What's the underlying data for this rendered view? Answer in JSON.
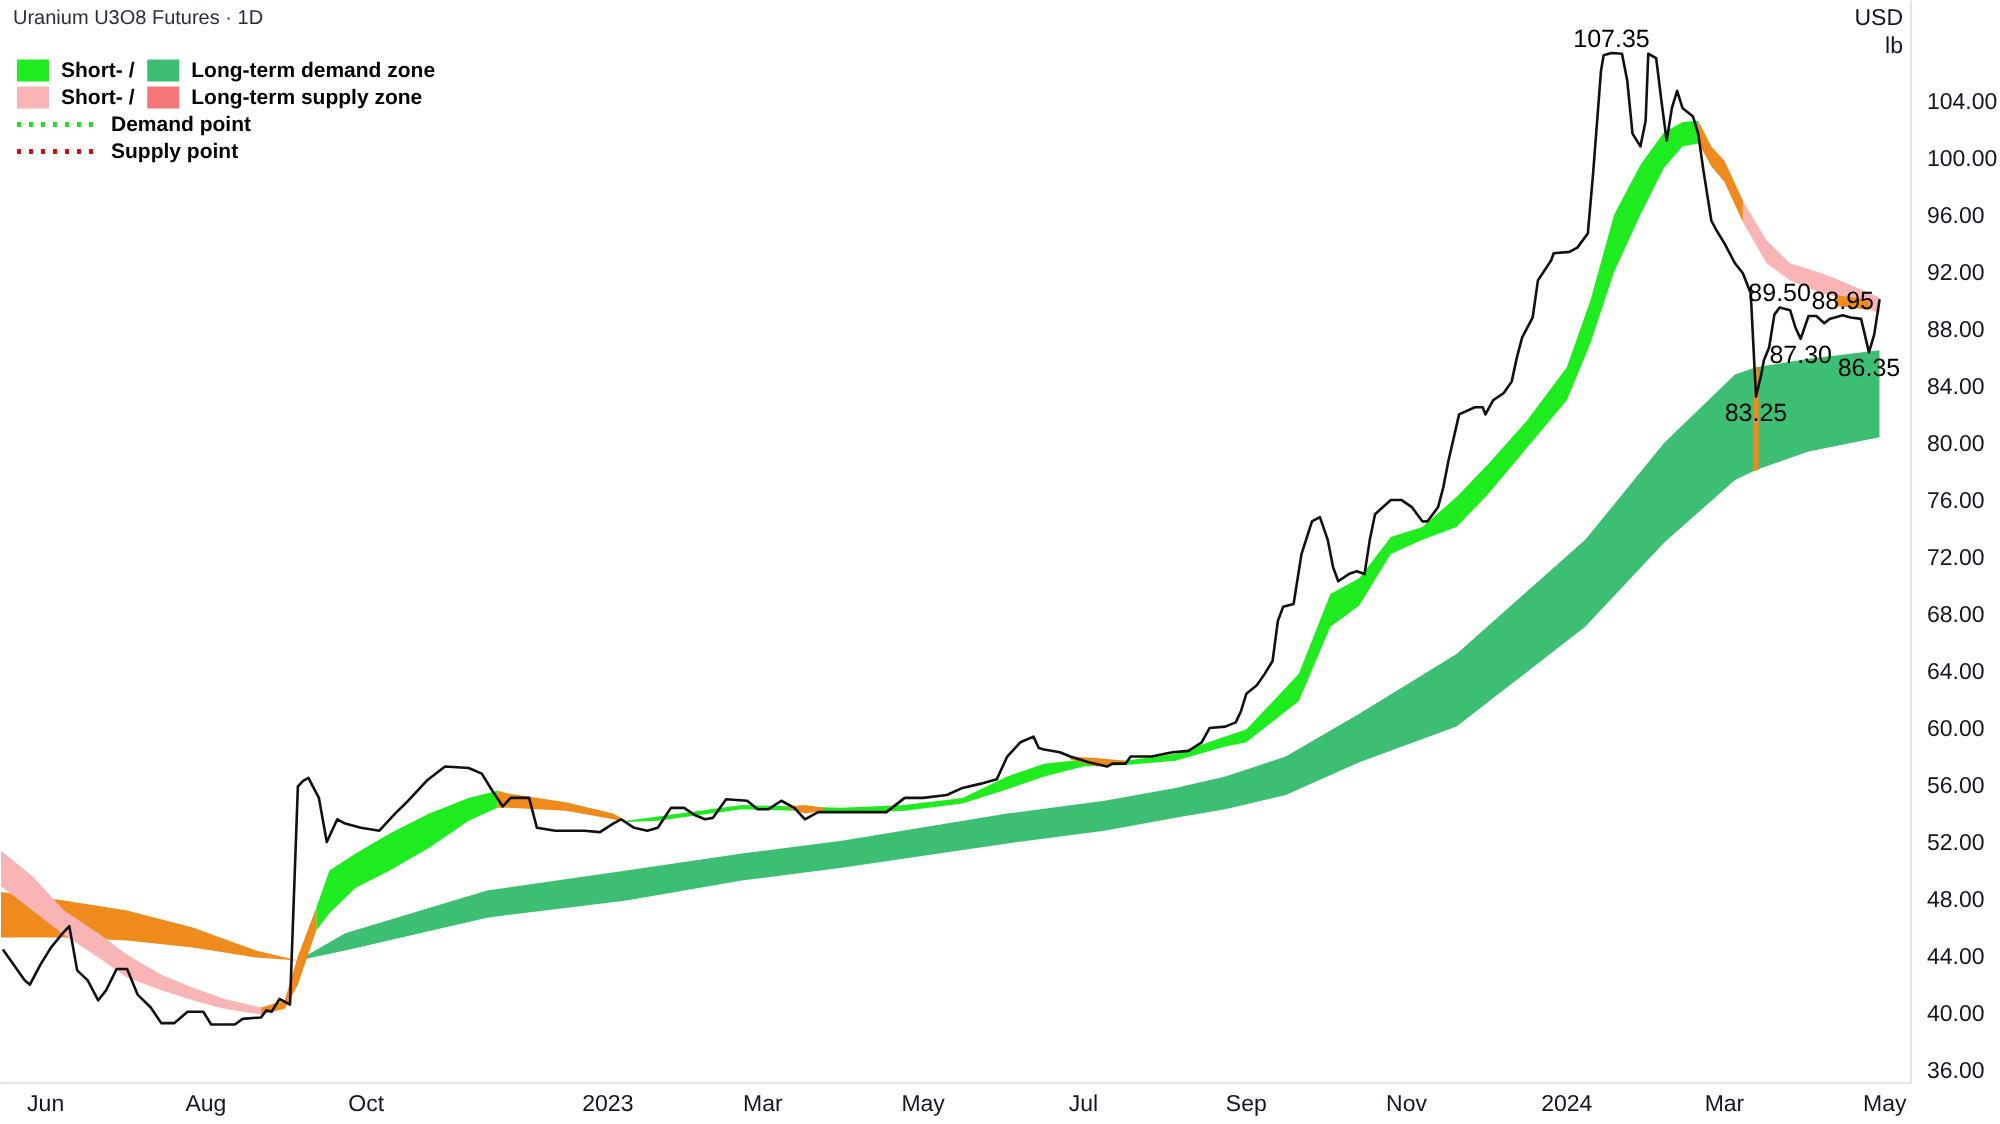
{
  "chart_data": {
    "type": "line",
    "title": "Uranium U3O8 Futures · 1D",
    "ylabel": "USD\nlb",
    "xlim": [
      "2022-05-15",
      "2024-05-11"
    ],
    "ylim": [
      35.1,
      111.0
    ],
    "xticks": [
      {
        "value": "2022-06-01",
        "label": "Jun"
      },
      {
        "value": "2022-08-01",
        "label": "Aug"
      },
      {
        "value": "2022-10-01",
        "label": "Oct"
      },
      {
        "value": "2023-01-01",
        "label": "2023"
      },
      {
        "value": "2023-03-01",
        "label": "Mar"
      },
      {
        "value": "2023-05-01",
        "label": "May"
      },
      {
        "value": "2023-07-01",
        "label": "Jul"
      },
      {
        "value": "2023-09-01",
        "label": "Sep"
      },
      {
        "value": "2023-11-01",
        "label": "Nov"
      },
      {
        "value": "2024-01-01",
        "label": "2024"
      },
      {
        "value": "2024-03-01",
        "label": "Mar"
      },
      {
        "value": "2024-05-01",
        "label": "May"
      }
    ],
    "yticks": [
      {
        "value": 36,
        "label": "36.00"
      },
      {
        "value": 40,
        "label": "40.00"
      },
      {
        "value": 44,
        "label": "44.00"
      },
      {
        "value": 48,
        "label": "48.00"
      },
      {
        "value": 52,
        "label": "52.00"
      },
      {
        "value": 56,
        "label": "56.00"
      },
      {
        "value": 60,
        "label": "60.00"
      },
      {
        "value": 64,
        "label": "64.00"
      },
      {
        "value": 68,
        "label": "68.00"
      },
      {
        "value": 72,
        "label": "72.00"
      },
      {
        "value": 76,
        "label": "76.00"
      },
      {
        "value": 80,
        "label": "80.00"
      },
      {
        "value": 84,
        "label": "84.00"
      },
      {
        "value": 88,
        "label": "88.00"
      },
      {
        "value": 92,
        "label": "92.00"
      },
      {
        "value": 96,
        "label": "96.00"
      },
      {
        "value": 100,
        "label": "100.00"
      },
      {
        "value": 104,
        "label": "104.00"
      }
    ],
    "grid": false,
    "legend": "top left",
    "series": [
      {
        "type": "area",
        "name": "Short- /",
        "color": "#1fec1f",
        "x": [
          "2022-09-12",
          "2022-09-17",
          "2022-09-27",
          "2022-10-10",
          "2022-10-25",
          "2022-11-09",
          "2022-11-20",
          "2022-12-15",
          "2023-01-08",
          "2023-01-20",
          "2023-02-21",
          "2023-03-31",
          "2023-04-24",
          "2023-05-16",
          "2023-06-02",
          "2023-06-16",
          "2023-07-01",
          "2023-07-17",
          "2023-08-05",
          "2023-08-24",
          "2023-09-01",
          "2023-09-21",
          "2023-10-03",
          "2023-10-14",
          "2023-10-26",
          "2023-11-07",
          "2023-11-20",
          "2023-12-02",
          "2023-12-17",
          "2024-01-01",
          "2024-01-10",
          "2024-01-19",
          "2024-01-29",
          "2024-02-07",
          "2024-02-14",
          "2024-02-20"
        ],
        "values": [
          null,
          null,
          null,
          null,
          null,
          null,
          null,
          null,
          null,
          null,
          null,
          null,
          null,
          null,
          null,
          null,
          null,
          null,
          null,
          null,
          null,
          null,
          null,
          null,
          null,
          null,
          null,
          null,
          null,
          null,
          null,
          null,
          null,
          null,
          null,
          null
        ],
        "lower": [
          45.8,
          47.0,
          48.8,
          50.0,
          51.6,
          53.5,
          54.4,
          null,
          53.4,
          53.5,
          54.3,
          54.1,
          54.2,
          54.7,
          55.7,
          56.6,
          57.3,
          57.4,
          57.7,
          58.7,
          59.0,
          61.9,
          67.1,
          68.6,
          72.2,
          73.2,
          74.1,
          76.4,
          79.7,
          83.0,
          87.0,
          92.0,
          96.0,
          99.3,
          100.8,
          101.0
        ],
        "upper": [
          47.4,
          50.0,
          51.2,
          52.6,
          54.0,
          55.1,
          55.6,
          null,
          53.5,
          53.8,
          54.6,
          54.4,
          54.6,
          55.1,
          56.6,
          57.5,
          57.8,
          57.7,
          58.2,
          59.4,
          59.9,
          63.8,
          69.4,
          70.5,
          73.4,
          74.1,
          76.2,
          78.5,
          81.6,
          85.3,
          90.0,
          96.0,
          99.5,
          101.8,
          102.5,
          102.6
        ]
      },
      {
        "type": "area",
        "name": "Long-term demand zone",
        "color": "#3dbf73",
        "x": [
          "2022-09-05",
          "2022-09-23",
          "2022-11-16",
          "2023-01-08",
          "2023-02-21",
          "2023-03-31",
          "2023-06-02",
          "2023-07-09",
          "2023-08-05",
          "2023-08-24",
          "2023-09-16",
          "2023-10-14",
          "2023-11-20",
          "2024-01-08",
          "2024-02-07",
          "2024-03-05",
          "2024-03-13",
          "2024-04-02",
          "2024-04-29"
        ],
        "values": [
          null,
          null,
          null,
          null,
          null,
          null,
          null,
          null,
          null,
          null,
          null,
          null,
          null,
          null,
          null,
          null,
          null,
          null,
          null
        ],
        "lower": [
          43.7,
          44.4,
          46.7,
          47.9,
          49.3,
          50.2,
          51.9,
          52.8,
          53.7,
          54.3,
          55.3,
          57.6,
          60.1,
          67.1,
          73.0,
          77.4,
          78.1,
          79.4,
          80.4
        ],
        "upper": [
          43.7,
          45.6,
          48.6,
          50.0,
          51.2,
          52.1,
          54.0,
          54.9,
          55.8,
          56.6,
          58.0,
          61.0,
          65.2,
          73.2,
          80.0,
          84.8,
          85.3,
          85.9,
          86.5
        ]
      },
      {
        "type": "area",
        "color": "#ef8a1d",
        "x": [
          "2022-05-15",
          "2022-06-08",
          "2022-07-02",
          "2022-07-27",
          "2022-08-20",
          "2022-09-05",
          "2023-06-01",
          "2024-03-12",
          "2024-03-14"
        ],
        "values": [
          null,
          null,
          null,
          null,
          null,
          null,
          null,
          null,
          null
        ],
        "lower": [
          45.3,
          45.3,
          45.1,
          44.6,
          43.9,
          43.7,
          null,
          78.0,
          78.1
        ],
        "upper": [
          48.5,
          47.9,
          47.2,
          46.0,
          44.4,
          43.7,
          null,
          85.3,
          85.3
        ]
      },
      {
        "type": "area",
        "name": "Short- /",
        "color": "#f9b5b5",
        "x": [
          "2022-05-15",
          "2022-05-27",
          "2022-06-08",
          "2022-06-21",
          "2022-07-02",
          "2022-07-15",
          "2022-07-27",
          "2022-08-08",
          "2022-08-22",
          "2023-06-01",
          "2024-03-08",
          "2024-03-17",
          "2024-03-26",
          "2024-04-07",
          "2024-04-14",
          "2024-04-29"
        ],
        "values": [
          null,
          null,
          null,
          null,
          null,
          null,
          null,
          null,
          null,
          null,
          null,
          null,
          null,
          null,
          null,
          null
        ],
        "lower": [
          48.9,
          47.2,
          45.5,
          43.9,
          42.5,
          41.6,
          40.9,
          40.3,
          39.9,
          null,
          95.5,
          92.6,
          91.4,
          90.5,
          90.2,
          89.1
        ],
        "upper": [
          51.4,
          49.6,
          47.2,
          45.6,
          44.1,
          42.7,
          41.8,
          41.0,
          40.4,
          null,
          97.0,
          94.2,
          92.6,
          91.9,
          91.4,
          90.2
        ]
      },
      {
        "type": "area",
        "name": "Long-term supply zone",
        "color": "#f47676"
      },
      {
        "type": "area",
        "color": "#ef8a1d",
        "x": [
          "2022-08-22",
          "2022-08-31",
          "2022-09-05",
          "2022-09-12",
          "2022-10-15",
          "2022-11-20",
          "2022-11-24",
          "2022-12-16",
          "2023-01-03",
          "2023-01-08",
          "2023-02-10",
          "2023-03-10",
          "2023-03-17",
          "2023-03-24",
          "2023-05-01",
          "2023-06-26",
          "2023-07-06",
          "2023-07-17",
          "2023-10-01",
          "2024-02-20",
          "2024-02-22",
          "2024-02-25",
          "2024-03-01",
          "2024-03-08",
          "2024-03-25",
          "2024-04-12",
          "2024-04-19",
          "2024-04-25"
        ],
        "values": [
          null,
          null,
          null,
          null,
          null,
          null,
          null,
          null,
          null,
          null,
          null,
          null,
          null,
          null,
          null,
          null,
          null,
          null,
          null,
          null,
          null,
          null,
          null,
          null,
          null,
          null,
          null,
          null
        ],
        "lower": [
          39.9,
          40.3,
          42.0,
          45.8,
          null,
          54.4,
          54.4,
          54.2,
          53.6,
          53.4,
          null,
          54.4,
          54.0,
          54.2,
          null,
          57.8,
          57.3,
          57.5,
          null,
          101.0,
          100.4,
          99.4,
          98.3,
          95.5,
          null,
          89.6,
          89.5,
          89.3
        ],
        "upper": [
          40.4,
          40.9,
          44.0,
          47.4,
          null,
          55.6,
          55.4,
          54.8,
          54.0,
          53.5,
          null,
          54.5,
          54.6,
          54.4,
          null,
          58.0,
          57.9,
          57.7,
          null,
          102.6,
          101.9,
          100.8,
          99.8,
          97.0,
          null,
          90.4,
          90.2,
          90.0
        ]
      },
      {
        "color": "#111111",
        "x": [
          "2022-05-16",
          "2022-05-24",
          "2022-05-26",
          "2022-05-30",
          "2022-06-03",
          "2022-06-07",
          "2022-06-10",
          "2022-06-13",
          "2022-06-17",
          "2022-06-21",
          "2022-06-24",
          "2022-06-28",
          "2022-07-02",
          "2022-07-06",
          "2022-07-11",
          "2022-07-15",
          "2022-07-20",
          "2022-07-25",
          "2022-07-31",
          "2022-08-03",
          "2022-08-12",
          "2022-08-15",
          "2022-08-22",
          "2022-08-24",
          "2022-08-26",
          "2022-08-29",
          "2022-09-02",
          "2022-09-05",
          "2022-09-07",
          "2022-09-09",
          "2022-09-13",
          "2022-09-16",
          "2022-09-20",
          "2022-09-23",
          "2022-09-29",
          "2022-10-06",
          "2022-10-12",
          "2022-10-17",
          "2022-10-24",
          "2022-10-31",
          "2022-11-09",
          "2022-11-14",
          "2022-11-18",
          "2022-11-22",
          "2022-11-25",
          "2022-12-02",
          "2022-12-05",
          "2022-12-12",
          "2022-12-23",
          "2022-12-29",
          "2023-01-03",
          "2023-01-06",
          "2023-01-11",
          "2023-01-16",
          "2023-01-20",
          "2023-01-25",
          "2023-01-30",
          "2023-02-03",
          "2023-02-07",
          "2023-02-10",
          "2023-02-15",
          "2023-02-23",
          "2023-02-27",
          "2023-03-03",
          "2023-03-08",
          "2023-03-13",
          "2023-03-17",
          "2023-03-22",
          "2023-04-17",
          "2023-04-24",
          "2023-05-01",
          "2023-05-10",
          "2023-05-16",
          "2023-05-23",
          "2023-05-29",
          "2023-05-31",
          "2023-06-02",
          "2023-06-07",
          "2023-06-12",
          "2023-06-14",
          "2023-06-16",
          "2023-06-22",
          "2023-06-26",
          "2023-07-03",
          "2023-07-10",
          "2023-07-12",
          "2023-07-17",
          "2023-07-19",
          "2023-07-27",
          "2023-08-01",
          "2023-08-04",
          "2023-08-10",
          "2023-08-15",
          "2023-08-18",
          "2023-08-24",
          "2023-08-28",
          "2023-08-30",
          "2023-09-01",
          "2023-09-05",
          "2023-09-08",
          "2023-09-11",
          "2023-09-13",
          "2023-09-15",
          "2023-09-19",
          "2023-09-22",
          "2023-09-26",
          "2023-09-29",
          "2023-10-02",
          "2023-10-04",
          "2023-10-06",
          "2023-10-10",
          "2023-10-13",
          "2023-10-16",
          "2023-10-18",
          "2023-10-20",
          "2023-10-26",
          "2023-10-30",
          "2023-11-03",
          "2023-11-07",
          "2023-11-09",
          "2023-11-13",
          "2023-11-15",
          "2023-11-17",
          "2023-11-21",
          "2023-11-27",
          "2023-11-30",
          "2023-12-01",
          "2023-12-04",
          "2023-12-08",
          "2023-12-11",
          "2023-12-13",
          "2023-12-15",
          "2023-12-19",
          "2023-12-21",
          "2023-12-26",
          "2023-12-27",
          "2024-01-02",
          "2024-01-05",
          "2024-01-09",
          "2024-01-11",
          "2024-01-14",
          "2024-01-15",
          "2024-01-18",
          "2024-01-22",
          "2024-01-24",
          "2024-01-26",
          "2024-01-29",
          "2024-01-31",
          "2024-02-01",
          "2024-02-04",
          "2024-02-06",
          "2024-02-08",
          "2024-02-10",
          "2024-02-12",
          "2024-02-14",
          "2024-02-18",
          "2024-02-20",
          "2024-02-22",
          "2024-02-25",
          "2024-02-27",
          "2024-03-01",
          "2024-03-05",
          "2024-03-08",
          "2024-03-11",
          "2024-03-13",
          "2024-03-15",
          "2024-03-16",
          "2024-03-18",
          "2024-03-20",
          "2024-03-22",
          "2024-03-26",
          "2024-03-28",
          "2024-03-30",
          "2024-04-02",
          "2024-04-05",
          "2024-04-08",
          "2024-04-10",
          "2024-04-15",
          "2024-04-18",
          "2024-04-22",
          "2024-04-25",
          "2024-04-27",
          "2024-04-29"
        ],
        "values": [
          44.4,
          42.3,
          42.0,
          43.4,
          44.6,
          45.5,
          46.1,
          43.0,
          42.3,
          40.9,
          41.6,
          43.1,
          43.1,
          41.3,
          40.4,
          39.3,
          39.3,
          40.1,
          40.1,
          39.2,
          39.2,
          39.6,
          39.7,
          40.2,
          40.1,
          41.0,
          40.6,
          55.9,
          56.3,
          56.5,
          55.1,
          52.0,
          53.6,
          53.3,
          53.0,
          52.8,
          54.0,
          54.9,
          56.3,
          57.3,
          57.2,
          56.8,
          55.6,
          54.5,
          55.1,
          55.1,
          53.0,
          52.8,
          52.8,
          52.7,
          53.3,
          53.6,
          53.0,
          52.8,
          53.0,
          54.4,
          54.4,
          53.9,
          53.6,
          53.7,
          55.0,
          54.9,
          54.3,
          54.3,
          54.9,
          54.4,
          53.6,
          54.1,
          54.1,
          55.1,
          55.1,
          55.3,
          55.8,
          56.1,
          56.4,
          57.2,
          58.0,
          59.0,
          59.4,
          58.6,
          58.5,
          58.3,
          58.0,
          57.6,
          57.3,
          57.5,
          57.5,
          58.0,
          58.0,
          58.2,
          58.3,
          58.4,
          59.0,
          60.0,
          60.1,
          60.4,
          61.2,
          62.4,
          63.0,
          63.8,
          64.7,
          67.5,
          68.5,
          68.7,
          72.2,
          74.5,
          74.8,
          73.2,
          71.3,
          70.3,
          70.8,
          71.0,
          70.8,
          73.2,
          75.0,
          76.0,
          76.0,
          75.5,
          74.5,
          74.5,
          75.5,
          76.9,
          78.8,
          82.0,
          82.5,
          82.5,
          82.0,
          83.0,
          83.5,
          84.3,
          86.0,
          87.4,
          88.8,
          91.4,
          92.8,
          93.3,
          93.4,
          93.7,
          94.7,
          98.9,
          106.1,
          107.2,
          107.35,
          107.3,
          105.4,
          101.7,
          100.8,
          102.6,
          107.3,
          107.0,
          104.0,
          101.2,
          103.5,
          104.7,
          103.5,
          102.9,
          101.7,
          99.1,
          95.6,
          94.9,
          94.0,
          92.6,
          91.9,
          90.5,
          83.25,
          84.8,
          85.8,
          86.7,
          89.0,
          89.5,
          89.3,
          88.1,
          87.3,
          88.9,
          88.9,
          88.4,
          88.7,
          88.95,
          88.8,
          88.7,
          86.35,
          87.6,
          90.0
        ]
      },
      {
        "name": "Demand point",
        "color": "#22dd22",
        "line_style": "dotted"
      },
      {
        "name": "Supply point",
        "color": "#d01010",
        "line_style": "dotted"
      }
    ],
    "annotations": [
      {
        "text": "107.35",
        "x": "2024-01-18",
        "y": 107.35
      },
      {
        "text": "89.50",
        "x": "2024-03-22",
        "y": 89.5
      },
      {
        "text": "88.95",
        "x": "2024-04-15",
        "y": 88.95
      },
      {
        "text": "87.30",
        "x": "2024-03-30",
        "y": 87.3
      },
      {
        "text": "86.35",
        "x": "2024-04-25",
        "y": 86.35
      },
      {
        "text": "83.25",
        "x": "2024-03-13",
        "y": 83.25
      }
    ]
  }
}
